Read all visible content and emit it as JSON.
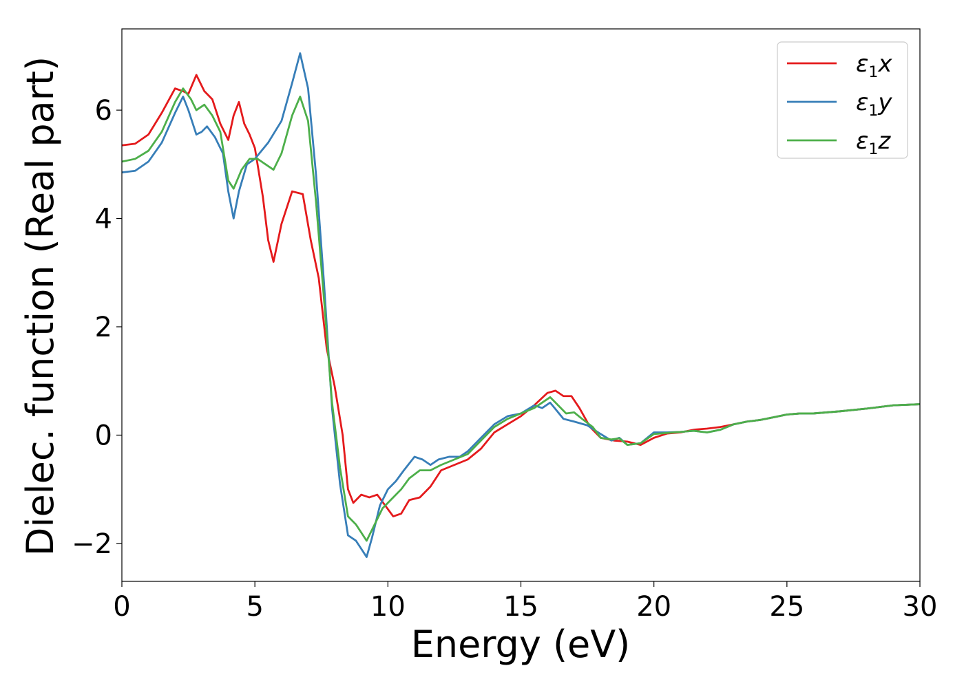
{
  "chart_data": {
    "type": "line",
    "title": "",
    "xlabel": "Energy (eV)",
    "ylabel": "Dielec. function (Real part)",
    "xlim": [
      0,
      30
    ],
    "ylim": [
      -2.7,
      7.5
    ],
    "x_ticks": [
      0,
      5,
      10,
      15,
      20,
      25,
      30
    ],
    "x_tick_labels": [
      "0",
      "5",
      "10",
      "15",
      "20",
      "25",
      "30"
    ],
    "y_ticks": [
      -2,
      0,
      2,
      4,
      6
    ],
    "y_tick_labels": [
      "−2",
      "0",
      "2",
      "4",
      "6"
    ],
    "grid": false,
    "legend_position": "top-right",
    "series": [
      {
        "name": "ε1x",
        "legend_symbol": "ε",
        "legend_sub": "1",
        "legend_var": "x",
        "color": "#e41a1c",
        "points": [
          [
            0,
            5.35
          ],
          [
            0.5,
            5.38
          ],
          [
            1.0,
            5.55
          ],
          [
            1.5,
            5.95
          ],
          [
            2.0,
            6.4
          ],
          [
            2.3,
            6.35
          ],
          [
            2.5,
            6.3
          ],
          [
            2.8,
            6.65
          ],
          [
            3.1,
            6.35
          ],
          [
            3.4,
            6.2
          ],
          [
            3.7,
            5.75
          ],
          [
            4.0,
            5.45
          ],
          [
            4.2,
            5.9
          ],
          [
            4.4,
            6.15
          ],
          [
            4.6,
            5.75
          ],
          [
            4.8,
            5.55
          ],
          [
            5.0,
            5.3
          ],
          [
            5.3,
            4.4
          ],
          [
            5.5,
            3.6
          ],
          [
            5.7,
            3.2
          ],
          [
            6.0,
            3.9
          ],
          [
            6.4,
            4.5
          ],
          [
            6.8,
            4.45
          ],
          [
            7.1,
            3.6
          ],
          [
            7.4,
            2.9
          ],
          [
            7.7,
            1.6
          ],
          [
            8.0,
            0.9
          ],
          [
            8.3,
            0.0
          ],
          [
            8.5,
            -1.0
          ],
          [
            8.7,
            -1.25
          ],
          [
            9.0,
            -1.1
          ],
          [
            9.3,
            -1.15
          ],
          [
            9.6,
            -1.1
          ],
          [
            9.9,
            -1.3
          ],
          [
            10.2,
            -1.5
          ],
          [
            10.5,
            -1.45
          ],
          [
            10.8,
            -1.2
          ],
          [
            11.2,
            -1.15
          ],
          [
            11.6,
            -0.95
          ],
          [
            12.0,
            -0.65
          ],
          [
            12.5,
            -0.55
          ],
          [
            13.0,
            -0.45
          ],
          [
            13.5,
            -0.25
          ],
          [
            14.0,
            0.05
          ],
          [
            14.5,
            0.2
          ],
          [
            15.0,
            0.35
          ],
          [
            15.5,
            0.55
          ],
          [
            16.0,
            0.78
          ],
          [
            16.3,
            0.82
          ],
          [
            16.6,
            0.72
          ],
          [
            16.9,
            0.72
          ],
          [
            17.2,
            0.5
          ],
          [
            17.6,
            0.15
          ],
          [
            18.0,
            -0.05
          ],
          [
            18.5,
            -0.1
          ],
          [
            19.0,
            -0.12
          ],
          [
            19.5,
            -0.18
          ],
          [
            20.0,
            -0.05
          ],
          [
            20.5,
            0.03
          ],
          [
            21.0,
            0.05
          ],
          [
            21.5,
            0.1
          ],
          [
            22.0,
            0.12
          ],
          [
            22.5,
            0.15
          ],
          [
            23.0,
            0.2
          ],
          [
            23.5,
            0.25
          ],
          [
            24.0,
            0.28
          ],
          [
            24.5,
            0.33
          ],
          [
            25.0,
            0.38
          ],
          [
            25.5,
            0.4
          ],
          [
            26.0,
            0.4
          ],
          [
            27.0,
            0.44
          ],
          [
            28.0,
            0.49
          ],
          [
            29.0,
            0.55
          ],
          [
            30.0,
            0.57
          ]
        ]
      },
      {
        "name": "ε1y",
        "legend_symbol": "ε",
        "legend_sub": "1",
        "legend_var": "y",
        "color": "#377eb8",
        "points": [
          [
            0,
            4.85
          ],
          [
            0.5,
            4.88
          ],
          [
            1.0,
            5.05
          ],
          [
            1.5,
            5.4
          ],
          [
            2.0,
            5.95
          ],
          [
            2.3,
            6.25
          ],
          [
            2.5,
            6.0
          ],
          [
            2.8,
            5.55
          ],
          [
            3.0,
            5.6
          ],
          [
            3.2,
            5.7
          ],
          [
            3.5,
            5.5
          ],
          [
            3.8,
            5.2
          ],
          [
            4.0,
            4.5
          ],
          [
            4.2,
            4.0
          ],
          [
            4.4,
            4.5
          ],
          [
            4.7,
            5.0
          ],
          [
            5.0,
            5.1
          ],
          [
            5.5,
            5.4
          ],
          [
            6.0,
            5.8
          ],
          [
            6.4,
            6.5
          ],
          [
            6.7,
            7.05
          ],
          [
            7.0,
            6.4
          ],
          [
            7.3,
            4.8
          ],
          [
            7.6,
            2.8
          ],
          [
            7.9,
            0.5
          ],
          [
            8.2,
            -0.9
          ],
          [
            8.5,
            -1.85
          ],
          [
            8.8,
            -1.95
          ],
          [
            9.0,
            -2.1
          ],
          [
            9.2,
            -2.25
          ],
          [
            9.4,
            -1.9
          ],
          [
            9.7,
            -1.3
          ],
          [
            10.0,
            -1.0
          ],
          [
            10.3,
            -0.85
          ],
          [
            10.6,
            -0.65
          ],
          [
            11.0,
            -0.4
          ],
          [
            11.3,
            -0.45
          ],
          [
            11.6,
            -0.55
          ],
          [
            11.9,
            -0.45
          ],
          [
            12.3,
            -0.4
          ],
          [
            12.7,
            -0.4
          ],
          [
            13.0,
            -0.3
          ],
          [
            13.5,
            -0.05
          ],
          [
            14.0,
            0.2
          ],
          [
            14.5,
            0.35
          ],
          [
            15.0,
            0.4
          ],
          [
            15.5,
            0.55
          ],
          [
            15.8,
            0.5
          ],
          [
            16.1,
            0.6
          ],
          [
            16.3,
            0.48
          ],
          [
            16.6,
            0.3
          ],
          [
            17.0,
            0.25
          ],
          [
            17.5,
            0.18
          ],
          [
            18.0,
            0.02
          ],
          [
            18.4,
            -0.1
          ],
          [
            18.7,
            -0.05
          ],
          [
            19.0,
            -0.18
          ],
          [
            19.5,
            -0.15
          ],
          [
            20.0,
            0.05
          ],
          [
            20.5,
            0.05
          ],
          [
            21.0,
            0.06
          ],
          [
            21.5,
            0.08
          ],
          [
            22.0,
            0.05
          ],
          [
            22.5,
            0.1
          ],
          [
            23.0,
            0.2
          ],
          [
            23.5,
            0.25
          ],
          [
            24.0,
            0.28
          ],
          [
            24.5,
            0.33
          ],
          [
            25.0,
            0.38
          ],
          [
            25.5,
            0.4
          ],
          [
            26.0,
            0.4
          ],
          [
            27.0,
            0.44
          ],
          [
            28.0,
            0.49
          ],
          [
            29.0,
            0.55
          ],
          [
            30.0,
            0.57
          ]
        ]
      },
      {
        "name": "ε1z",
        "legend_symbol": "ε",
        "legend_sub": "1",
        "legend_var": "z",
        "color": "#4daf4a",
        "points": [
          [
            0,
            5.05
          ],
          [
            0.5,
            5.1
          ],
          [
            1.0,
            5.25
          ],
          [
            1.5,
            5.6
          ],
          [
            2.0,
            6.15
          ],
          [
            2.3,
            6.4
          ],
          [
            2.6,
            6.2
          ],
          [
            2.8,
            6.0
          ],
          [
            3.1,
            6.1
          ],
          [
            3.4,
            5.9
          ],
          [
            3.7,
            5.6
          ],
          [
            4.0,
            4.7
          ],
          [
            4.2,
            4.55
          ],
          [
            4.5,
            4.9
          ],
          [
            4.8,
            5.1
          ],
          [
            5.1,
            5.1
          ],
          [
            5.4,
            5.0
          ],
          [
            5.7,
            4.9
          ],
          [
            6.0,
            5.2
          ],
          [
            6.4,
            5.9
          ],
          [
            6.7,
            6.25
          ],
          [
            7.0,
            5.8
          ],
          [
            7.3,
            4.3
          ],
          [
            7.6,
            2.5
          ],
          [
            7.9,
            0.6
          ],
          [
            8.2,
            -0.6
          ],
          [
            8.5,
            -1.5
          ],
          [
            8.8,
            -1.65
          ],
          [
            9.0,
            -1.8
          ],
          [
            9.2,
            -1.95
          ],
          [
            9.5,
            -1.65
          ],
          [
            9.8,
            -1.35
          ],
          [
            10.2,
            -1.15
          ],
          [
            10.5,
            -1.0
          ],
          [
            10.8,
            -0.8
          ],
          [
            11.2,
            -0.65
          ],
          [
            11.6,
            -0.65
          ],
          [
            12.0,
            -0.55
          ],
          [
            12.5,
            -0.45
          ],
          [
            13.0,
            -0.35
          ],
          [
            13.5,
            -0.1
          ],
          [
            14.0,
            0.15
          ],
          [
            14.5,
            0.3
          ],
          [
            15.0,
            0.4
          ],
          [
            15.5,
            0.5
          ],
          [
            15.8,
            0.6
          ],
          [
            16.1,
            0.7
          ],
          [
            16.4,
            0.55
          ],
          [
            16.7,
            0.4
          ],
          [
            17.0,
            0.42
          ],
          [
            17.3,
            0.3
          ],
          [
            17.7,
            0.15
          ],
          [
            18.0,
            -0.05
          ],
          [
            18.4,
            -0.08
          ],
          [
            18.7,
            -0.06
          ],
          [
            19.0,
            -0.18
          ],
          [
            19.5,
            -0.15
          ],
          [
            20.0,
            0.02
          ],
          [
            20.5,
            0.04
          ],
          [
            21.0,
            0.06
          ],
          [
            21.5,
            0.08
          ],
          [
            22.0,
            0.05
          ],
          [
            22.5,
            0.1
          ],
          [
            23.0,
            0.2
          ],
          [
            23.5,
            0.25
          ],
          [
            24.0,
            0.28
          ],
          [
            24.5,
            0.33
          ],
          [
            25.0,
            0.38
          ],
          [
            25.5,
            0.4
          ],
          [
            26.0,
            0.4
          ],
          [
            27.0,
            0.44
          ],
          [
            28.0,
            0.49
          ],
          [
            29.0,
            0.55
          ],
          [
            30.0,
            0.57
          ]
        ]
      }
    ]
  }
}
